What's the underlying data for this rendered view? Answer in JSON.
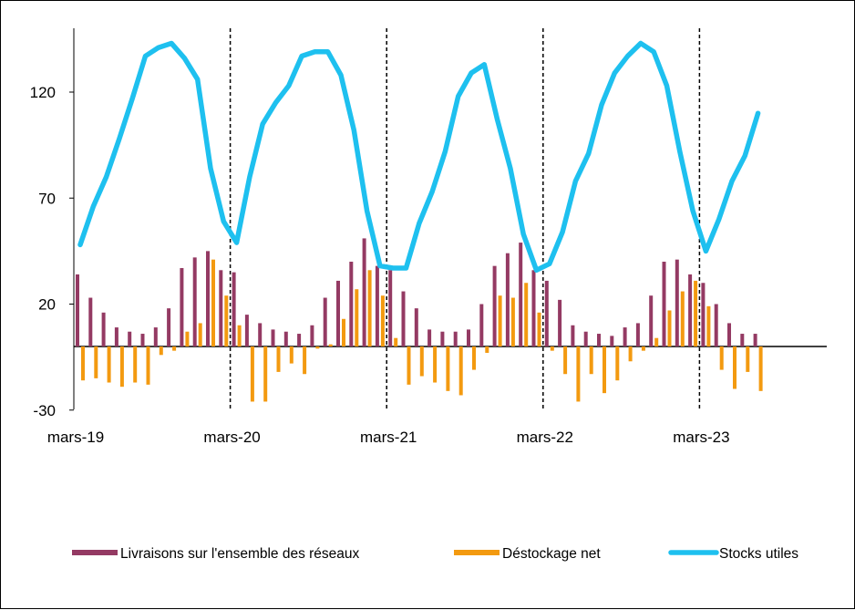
{
  "chart_data": {
    "type": "bar",
    "title": "",
    "xlabel": "",
    "ylabel": "",
    "ylim": [
      -30,
      150
    ],
    "y_ticks": [
      -30,
      20,
      70,
      120
    ],
    "x_tick_labels": [
      "mars-19",
      "mars-20",
      "mars-21",
      "mars-22",
      "mars-23"
    ],
    "x_tick_months": [
      0,
      12,
      24,
      36,
      48
    ],
    "month_start": "2019-03",
    "dashed_vertical_lines_at_months": [
      12,
      24,
      36,
      48
    ],
    "legend_position": "bottom",
    "grid": false,
    "series": [
      {
        "name": "Livraisons sur l'ensemble des réseaux",
        "type": "bar",
        "color": "#943a63",
        "values": [
          34,
          23,
          16,
          9,
          7,
          6,
          9,
          18,
          37,
          42,
          45,
          36,
          35,
          15,
          11,
          8,
          7,
          6,
          10,
          23,
          31,
          40,
          51,
          38,
          36,
          26,
          18,
          8,
          7,
          7,
          8,
          20,
          38,
          44,
          49,
          36,
          31,
          22,
          10,
          7,
          6,
          5,
          9,
          11,
          24,
          40,
          41,
          34,
          30,
          20,
          11,
          6,
          6
        ]
      },
      {
        "name": "Déstockage net",
        "type": "bar",
        "color": "#f39a10",
        "values": [
          -16,
          -15,
          -17,
          -19,
          -17,
          -18,
          -4,
          -2,
          7,
          11,
          41,
          24,
          10,
          -26,
          -26,
          -12,
          -8,
          -13,
          -1,
          1,
          13,
          27,
          36,
          24,
          4,
          -18,
          -14,
          -17,
          -21,
          -23,
          -11,
          -3,
          24,
          23,
          30,
          16,
          -2,
          -13,
          -26,
          -13,
          -22,
          -16,
          -7,
          -2,
          4,
          17,
          26,
          31,
          19,
          -11,
          -20,
          -12,
          -21
        ]
      },
      {
        "name": "Stocks utiles",
        "type": "line",
        "color": "#1ec0ef",
        "values": [
          48,
          66,
          80,
          98,
          117,
          137,
          141,
          143,
          136,
          126,
          84,
          59,
          49,
          80,
          105,
          115,
          123,
          137,
          139,
          139,
          128,
          102,
          64,
          38,
          37,
          37,
          58,
          73,
          92,
          118,
          129,
          133,
          107,
          84,
          53,
          36,
          39,
          54,
          78,
          91,
          114,
          129,
          137,
          143,
          139,
          123,
          92,
          64,
          45,
          60,
          78,
          90,
          110
        ]
      }
    ]
  }
}
